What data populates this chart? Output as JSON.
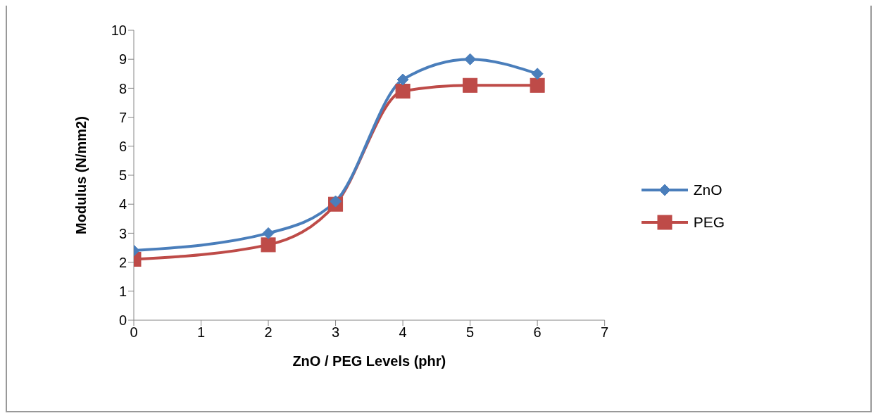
{
  "chart_data": {
    "type": "line",
    "xlabel": "ZnO / PEG Levels (phr)",
    "ylabel": "Modulus (N/mm2)",
    "x": [
      0,
      2,
      3,
      4,
      5,
      6
    ],
    "series": [
      {
        "name": "ZnO",
        "color": "#4a7ebb",
        "marker": "diamond",
        "values": [
          2.4,
          3.0,
          4.1,
          8.3,
          9.0,
          8.5
        ]
      },
      {
        "name": "PEG",
        "color": "#be4b48",
        "marker": "square",
        "values": [
          2.1,
          2.6,
          4.0,
          7.9,
          8.1,
          8.1
        ]
      }
    ],
    "xlim": [
      0,
      7
    ],
    "xticks": [
      0,
      1,
      2,
      3,
      4,
      5,
      6,
      7
    ],
    "ylim": [
      0,
      10
    ],
    "yticks": [
      0,
      1,
      2,
      3,
      4,
      5,
      6,
      7,
      8,
      9,
      10
    ],
    "grid": false,
    "legend": "right",
    "line_style": "solid"
  }
}
